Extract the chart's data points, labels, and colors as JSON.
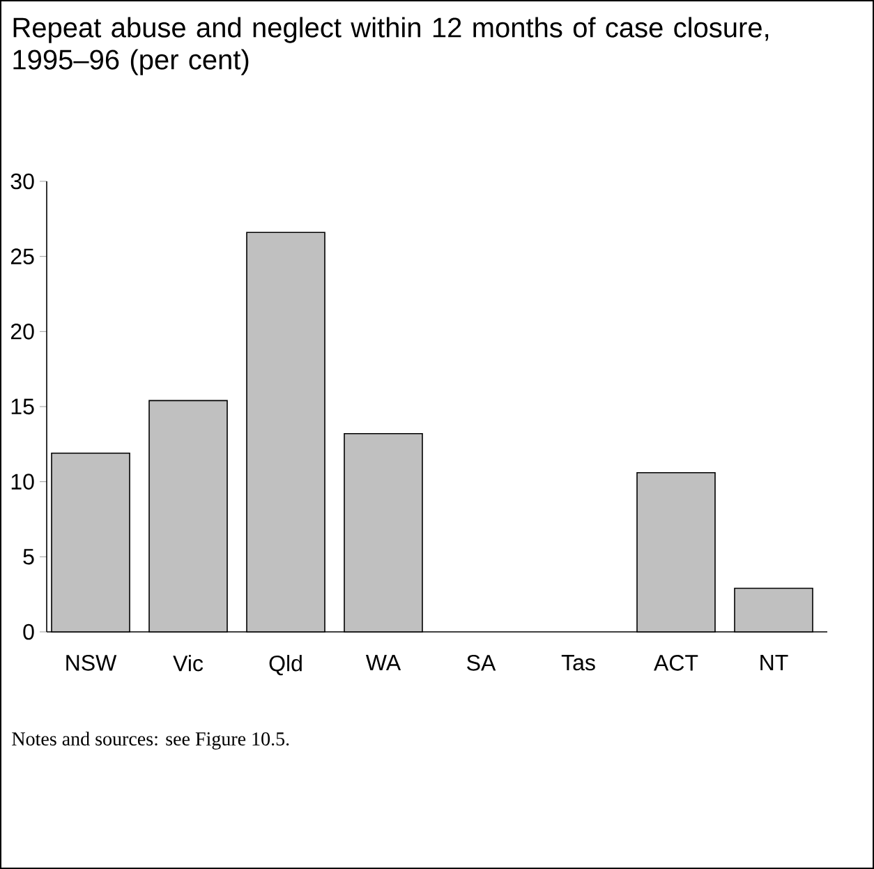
{
  "chart_data": {
    "type": "bar",
    "title": "Repeat abuse and neglect within 12 months of case closure, 1995–96 (per cent)",
    "categories": [
      "NSW",
      "Vic",
      "Qld",
      "WA",
      "SA",
      "Tas",
      "ACT",
      "NT"
    ],
    "values": [
      11.9,
      15.4,
      26.6,
      13.2,
      null,
      null,
      10.6,
      2.9
    ],
    "color": "#c0c0c0",
    "ylim": [
      0,
      30
    ],
    "yticks": [
      0,
      5,
      10,
      15,
      20,
      25,
      30
    ],
    "annotations": [
      "Notes and sources: see Figure 10.5."
    ]
  }
}
